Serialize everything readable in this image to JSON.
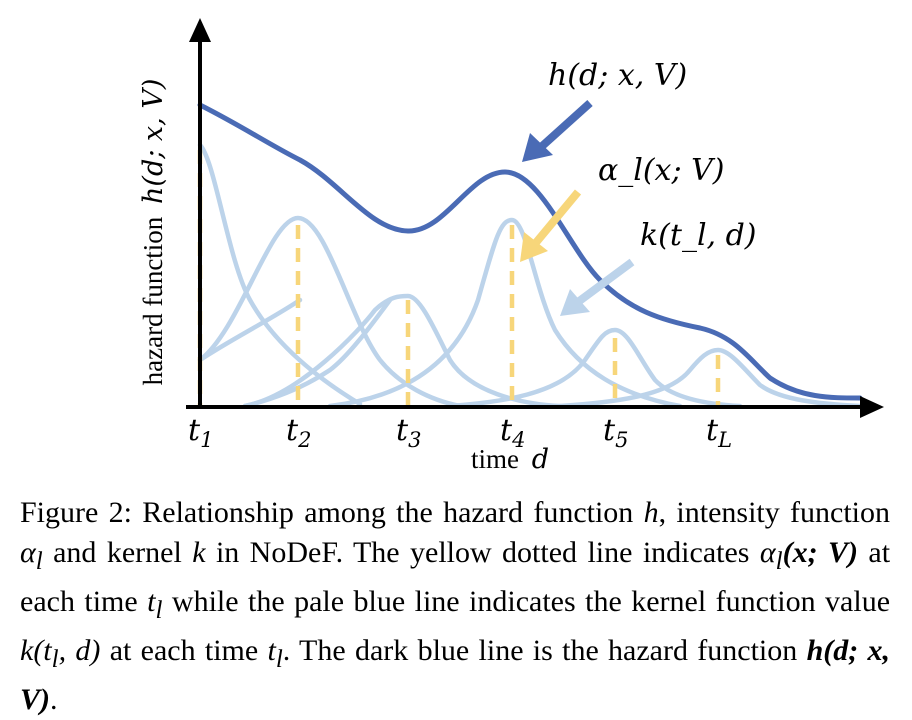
{
  "axes": {
    "y_title": "hazard function",
    "y_title_math": "h(d; x, V)",
    "x_title": "time",
    "x_title_math": "d",
    "ticks": [
      {
        "base": "t",
        "sub": "1"
      },
      {
        "base": "t",
        "sub": "2"
      },
      {
        "base": "t",
        "sub": "3"
      },
      {
        "base": "t",
        "sub": "4"
      },
      {
        "base": "t",
        "sub": "5"
      },
      {
        "base": "t",
        "sub": "L"
      }
    ]
  },
  "annotations": {
    "hazard": "h(d; x, V)",
    "intensity": "α_l(x; V)",
    "kernel": "k(t_l, d)"
  },
  "colors": {
    "hazard": "#4a6bb5",
    "kernel": "#bcd3ea",
    "intensity": "#f7d67a",
    "axis": "#000000"
  },
  "caption": {
    "figure_label": "Figure 2:",
    "part1": "Relationship among the hazard function",
    "sym_h": "h",
    "part2": ", intensity function",
    "sym_alpha": "α",
    "sym_alpha_sub": "l",
    "part3": "and kernel",
    "sym_k": "k",
    "part4": "in NoDeF. The yellow dotted line indicates",
    "sym_alpha_full": "α",
    "sym_alpha_full_rest": "(x; V)",
    "part5": "at each time",
    "sym_t": "t",
    "part6": "while the pale blue line indicates the kernel function value",
    "sym_kernel": "k(t",
    "sym_kernel_rest": ", d)",
    "part7": "at each time",
    "part8": ". The dark blue line is the hazard function",
    "sym_hazard": "h(d; x, V)",
    "end": "."
  }
}
